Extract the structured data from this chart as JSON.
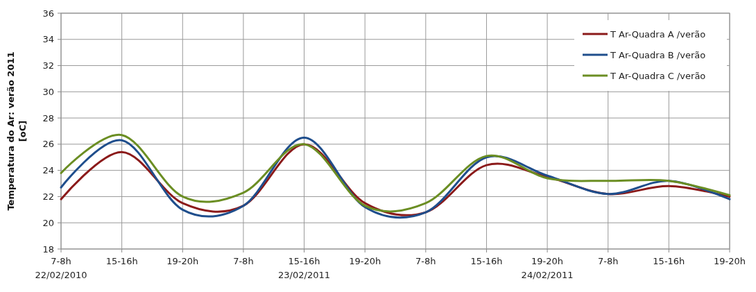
{
  "chart_data": {
    "type": "line",
    "ylabel": "Temperatura do Ar: verão 2011\n[oC]",
    "categories": [
      "7-8h\n22/02/2010",
      "15-16h",
      "19-20h",
      "7-8h",
      "15-16h\n23/02/2011",
      "19-20h",
      "7-8h",
      "15-16h",
      "19-20h\n24/02/2011",
      "7-8h",
      "15-16h",
      "19-20h"
    ],
    "series": [
      {
        "name": "T Ar-Quadra A /verão",
        "color": "#8b1a1a",
        "values": [
          21.8,
          25.4,
          21.5,
          21.3,
          26.0,
          21.5,
          20.8,
          24.4,
          23.5,
          22.2,
          22.8,
          22.0
        ]
      },
      {
        "name": "T Ar-Quadra B /verão",
        "color": "#1f4e8c",
        "values": [
          22.7,
          26.3,
          21.0,
          21.3,
          26.5,
          21.2,
          20.8,
          25.0,
          23.6,
          22.2,
          23.2,
          21.8
        ]
      },
      {
        "name": "T Ar-Quadra C /verão",
        "color": "#6b8e23",
        "values": [
          23.8,
          26.7,
          22.0,
          22.3,
          26.0,
          21.3,
          21.5,
          25.1,
          23.4,
          23.2,
          23.2,
          22.1
        ]
      }
    ],
    "ylim": [
      18,
      36
    ],
    "yticks": [
      18,
      20,
      22,
      24,
      26,
      28,
      30,
      32,
      34,
      36
    ],
    "grid": true,
    "legend": "top right",
    "marker": "none",
    "line_style": "solid"
  }
}
